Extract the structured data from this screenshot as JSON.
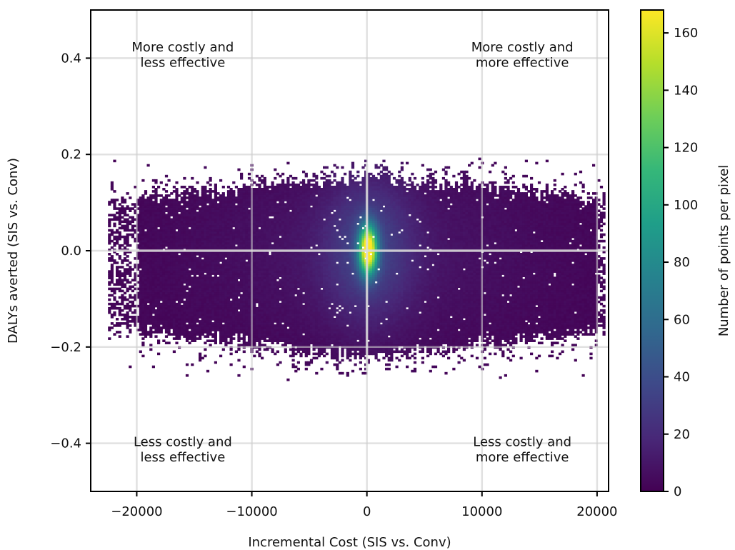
{
  "chart_data": {
    "type": "heatmap",
    "title": "",
    "xlabel": "Incremental Cost (SIS vs. Conv)",
    "ylabel": "DALYs averted (SIS vs. Conv)",
    "xlim": [
      -24000,
      21000
    ],
    "ylim": [
      -0.5,
      0.5
    ],
    "x_ticks": [
      -20000,
      -10000,
      0,
      10000,
      20000
    ],
    "x_tick_labels": [
      "−20000",
      "−10000",
      "0",
      "10000",
      "20000"
    ],
    "y_ticks": [
      -0.4,
      -0.2,
      0.0,
      0.2,
      0.4
    ],
    "y_tick_labels": [
      "−0.4",
      "−0.2",
      "0.0",
      "0.2",
      "0.4"
    ],
    "grid": true,
    "reference_lines": {
      "x": 0,
      "y": 0
    },
    "colorscale": "viridis",
    "colorbar": {
      "label": "Number of points per pixel",
      "range": [
        0,
        168
      ],
      "ticks": [
        0,
        20,
        40,
        60,
        80,
        100,
        120,
        140,
        160
      ],
      "tick_labels": [
        "0",
        "20",
        "40",
        "60",
        "80",
        "100",
        "120",
        "140",
        "160"
      ]
    },
    "density": {
      "x_range": [
        -22500,
        20500
      ],
      "y_range": [
        -0.27,
        0.19
      ],
      "peak_at": [
        0,
        0.0
      ],
      "peak_count": 165
    },
    "quadrant_labels": [
      {
        "text": "More costly and\nless effective",
        "x": -16000,
        "y": 0.41
      },
      {
        "text": "More costly and\nmore effective",
        "x": 13500,
        "y": 0.41
      },
      {
        "text": "Less costly and\nless effective",
        "x": -16000,
        "y": -0.41
      },
      {
        "text": "Less costly and\nmore effective",
        "x": 13500,
        "y": -0.41
      }
    ]
  }
}
